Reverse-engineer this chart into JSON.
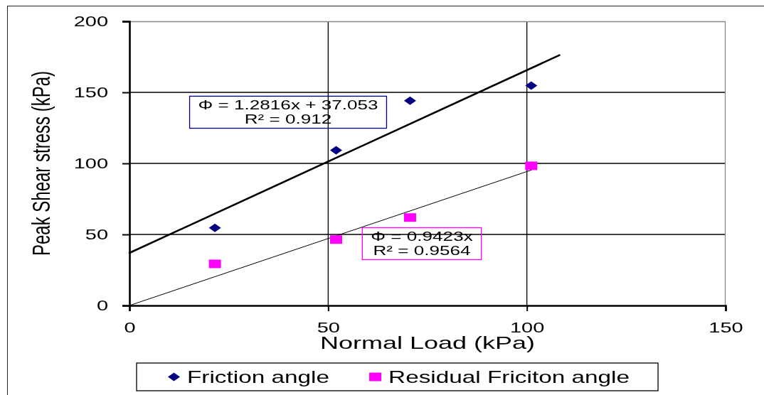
{
  "chart_data": {
    "type": "scatter",
    "xlabel": "Normal Load (kPa)",
    "ylabel": "Peak Shear stress (kPa)",
    "xlim": [
      0,
      150
    ],
    "xticks": [
      0,
      50,
      100,
      150
    ],
    "ylim": [
      0,
      200
    ],
    "yticks": [
      0,
      50,
      100,
      150,
      200
    ],
    "grid": true,
    "legend": "bottom",
    "series": [
      {
        "name": "Friction angle",
        "color": "#000080",
        "marker": "diamond",
        "x": [
          21.5,
          52,
          70.6,
          101.1
        ],
        "values": [
          54.6,
          109.3,
          144.1,
          154.7
        ]
      },
      {
        "name": "Residual Friciton angle",
        "color": "#ff00ff",
        "marker": "square",
        "x": [
          21.5,
          52,
          70.6,
          101.1
        ],
        "values": [
          29.3,
          46.4,
          61.9,
          98.3
        ]
      },
      {
        "type": "line",
        "color": "#000000",
        "x": [
          0,
          108.2
        ],
        "values": [
          37,
          176.2
        ]
      },
      {
        "type": "line",
        "color": "#000000",
        "x": [
          0,
          101.2
        ],
        "values": [
          0,
          95.4
        ]
      }
    ],
    "annotations": [
      "Φ = 1.2816x + 37.053\nR² = 0.912",
      "Φ = 0.9423x\nR² = 0.9564"
    ]
  }
}
